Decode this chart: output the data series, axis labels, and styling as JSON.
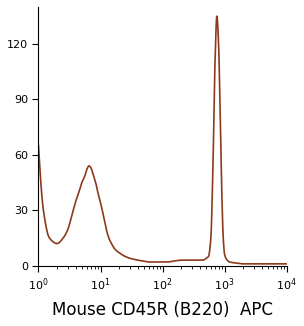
{
  "line_color": "#8B3A1A",
  "background_color": "#ffffff",
  "xlabel": "Mouse CD45R (B220)  APC",
  "ylabel": "",
  "xlim_log": [
    1,
    10000
  ],
  "ylim": [
    0,
    140
  ],
  "yticks": [
    0,
    30,
    60,
    90,
    120
  ],
  "xtick_labels": [
    "10°",
    "10¹",
    "10²",
    "10³",
    "10⁴"
  ],
  "xtick_positions": [
    1,
    10,
    100,
    1000,
    10000
  ],
  "title_fontsize": 11,
  "xlabel_fontsize": 12,
  "line_width": 1.2,
  "curve_x": [
    1,
    1.2,
    1.5,
    2,
    2.5,
    3,
    3.5,
    4,
    4.5,
    5,
    5.5,
    6,
    6.5,
    7,
    7.5,
    8,
    8.5,
    9,
    10,
    11,
    12,
    13,
    14,
    15,
    17,
    20,
    25,
    30,
    40,
    50,
    60,
    70,
    80,
    100,
    120,
    150,
    200,
    250,
    300,
    350,
    400,
    450,
    500,
    550,
    600,
    650,
    700,
    750,
    800,
    850,
    900,
    950,
    1000,
    1100,
    1200,
    1500,
    2000,
    3000,
    5000,
    10000
  ],
  "curve_y": [
    65,
    30,
    15,
    12,
    15,
    20,
    28,
    35,
    40,
    45,
    48,
    52,
    54,
    53,
    50,
    47,
    44,
    40,
    34,
    28,
    22,
    17,
    14,
    12,
    9,
    7,
    5,
    4,
    3,
    2.5,
    2,
    2,
    2,
    2,
    2,
    2.5,
    3,
    3,
    3,
    3,
    3,
    3,
    4,
    5,
    15,
    55,
    110,
    135,
    120,
    80,
    40,
    15,
    6,
    3,
    2,
    1.5,
    1,
    1,
    1,
    1
  ]
}
